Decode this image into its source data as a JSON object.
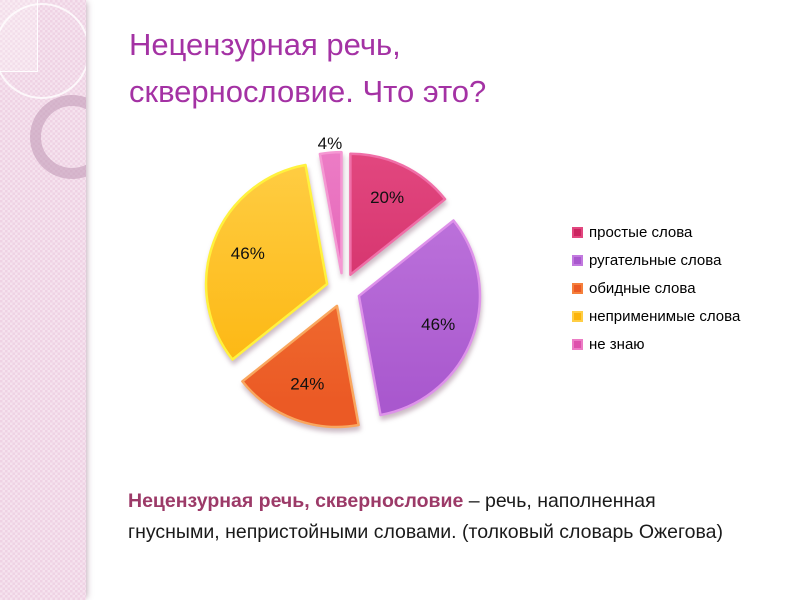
{
  "slide": {
    "background": "#FFFFFF",
    "sidebar_color": "#EFD2E4"
  },
  "title": {
    "text": "Нецензурная речь,\nсквернословие. Что это?",
    "color": "#A432A4"
  },
  "chart_data": {
    "type": "pie",
    "exploded": true,
    "legend_position": "right",
    "start_angle_deg": 0,
    "direction": "clockwise",
    "slices": [
      {
        "label": "простые слова",
        "value": 20,
        "display": "20%",
        "color": "#CB2560",
        "color_light": "#E2477F",
        "stroke": "#F06FA8"
      },
      {
        "label": "ругательные слова",
        "value": 46,
        "display": "46%",
        "color": "#A958CE",
        "color_light": "#C27ADF",
        "stroke": "#DE92EA"
      },
      {
        "label": "обидные слова",
        "value": 24,
        "display": "24%",
        "color": "#EB5A25",
        "color_light": "#F5803C",
        "stroke": "#F9A75F"
      },
      {
        "label": "неприменимые слова",
        "value": 46,
        "display": "46%",
        "color": "#FCB40B",
        "color_light": "#FFCE45",
        "stroke": "#FFF23E"
      },
      {
        "label": "не знаю",
        "value": 4,
        "display": "4%",
        "color": "#DE50AC",
        "color_light": "#EC7CC5",
        "stroke": "#F598D3"
      }
    ]
  },
  "definition": {
    "term": "Нецензурная речь, сквернословие",
    "rest": " – речь, наполненная\nгнусными, непристойными словами. (толковый словарь Ожегова)",
    "term_color": "#9C3A68"
  }
}
